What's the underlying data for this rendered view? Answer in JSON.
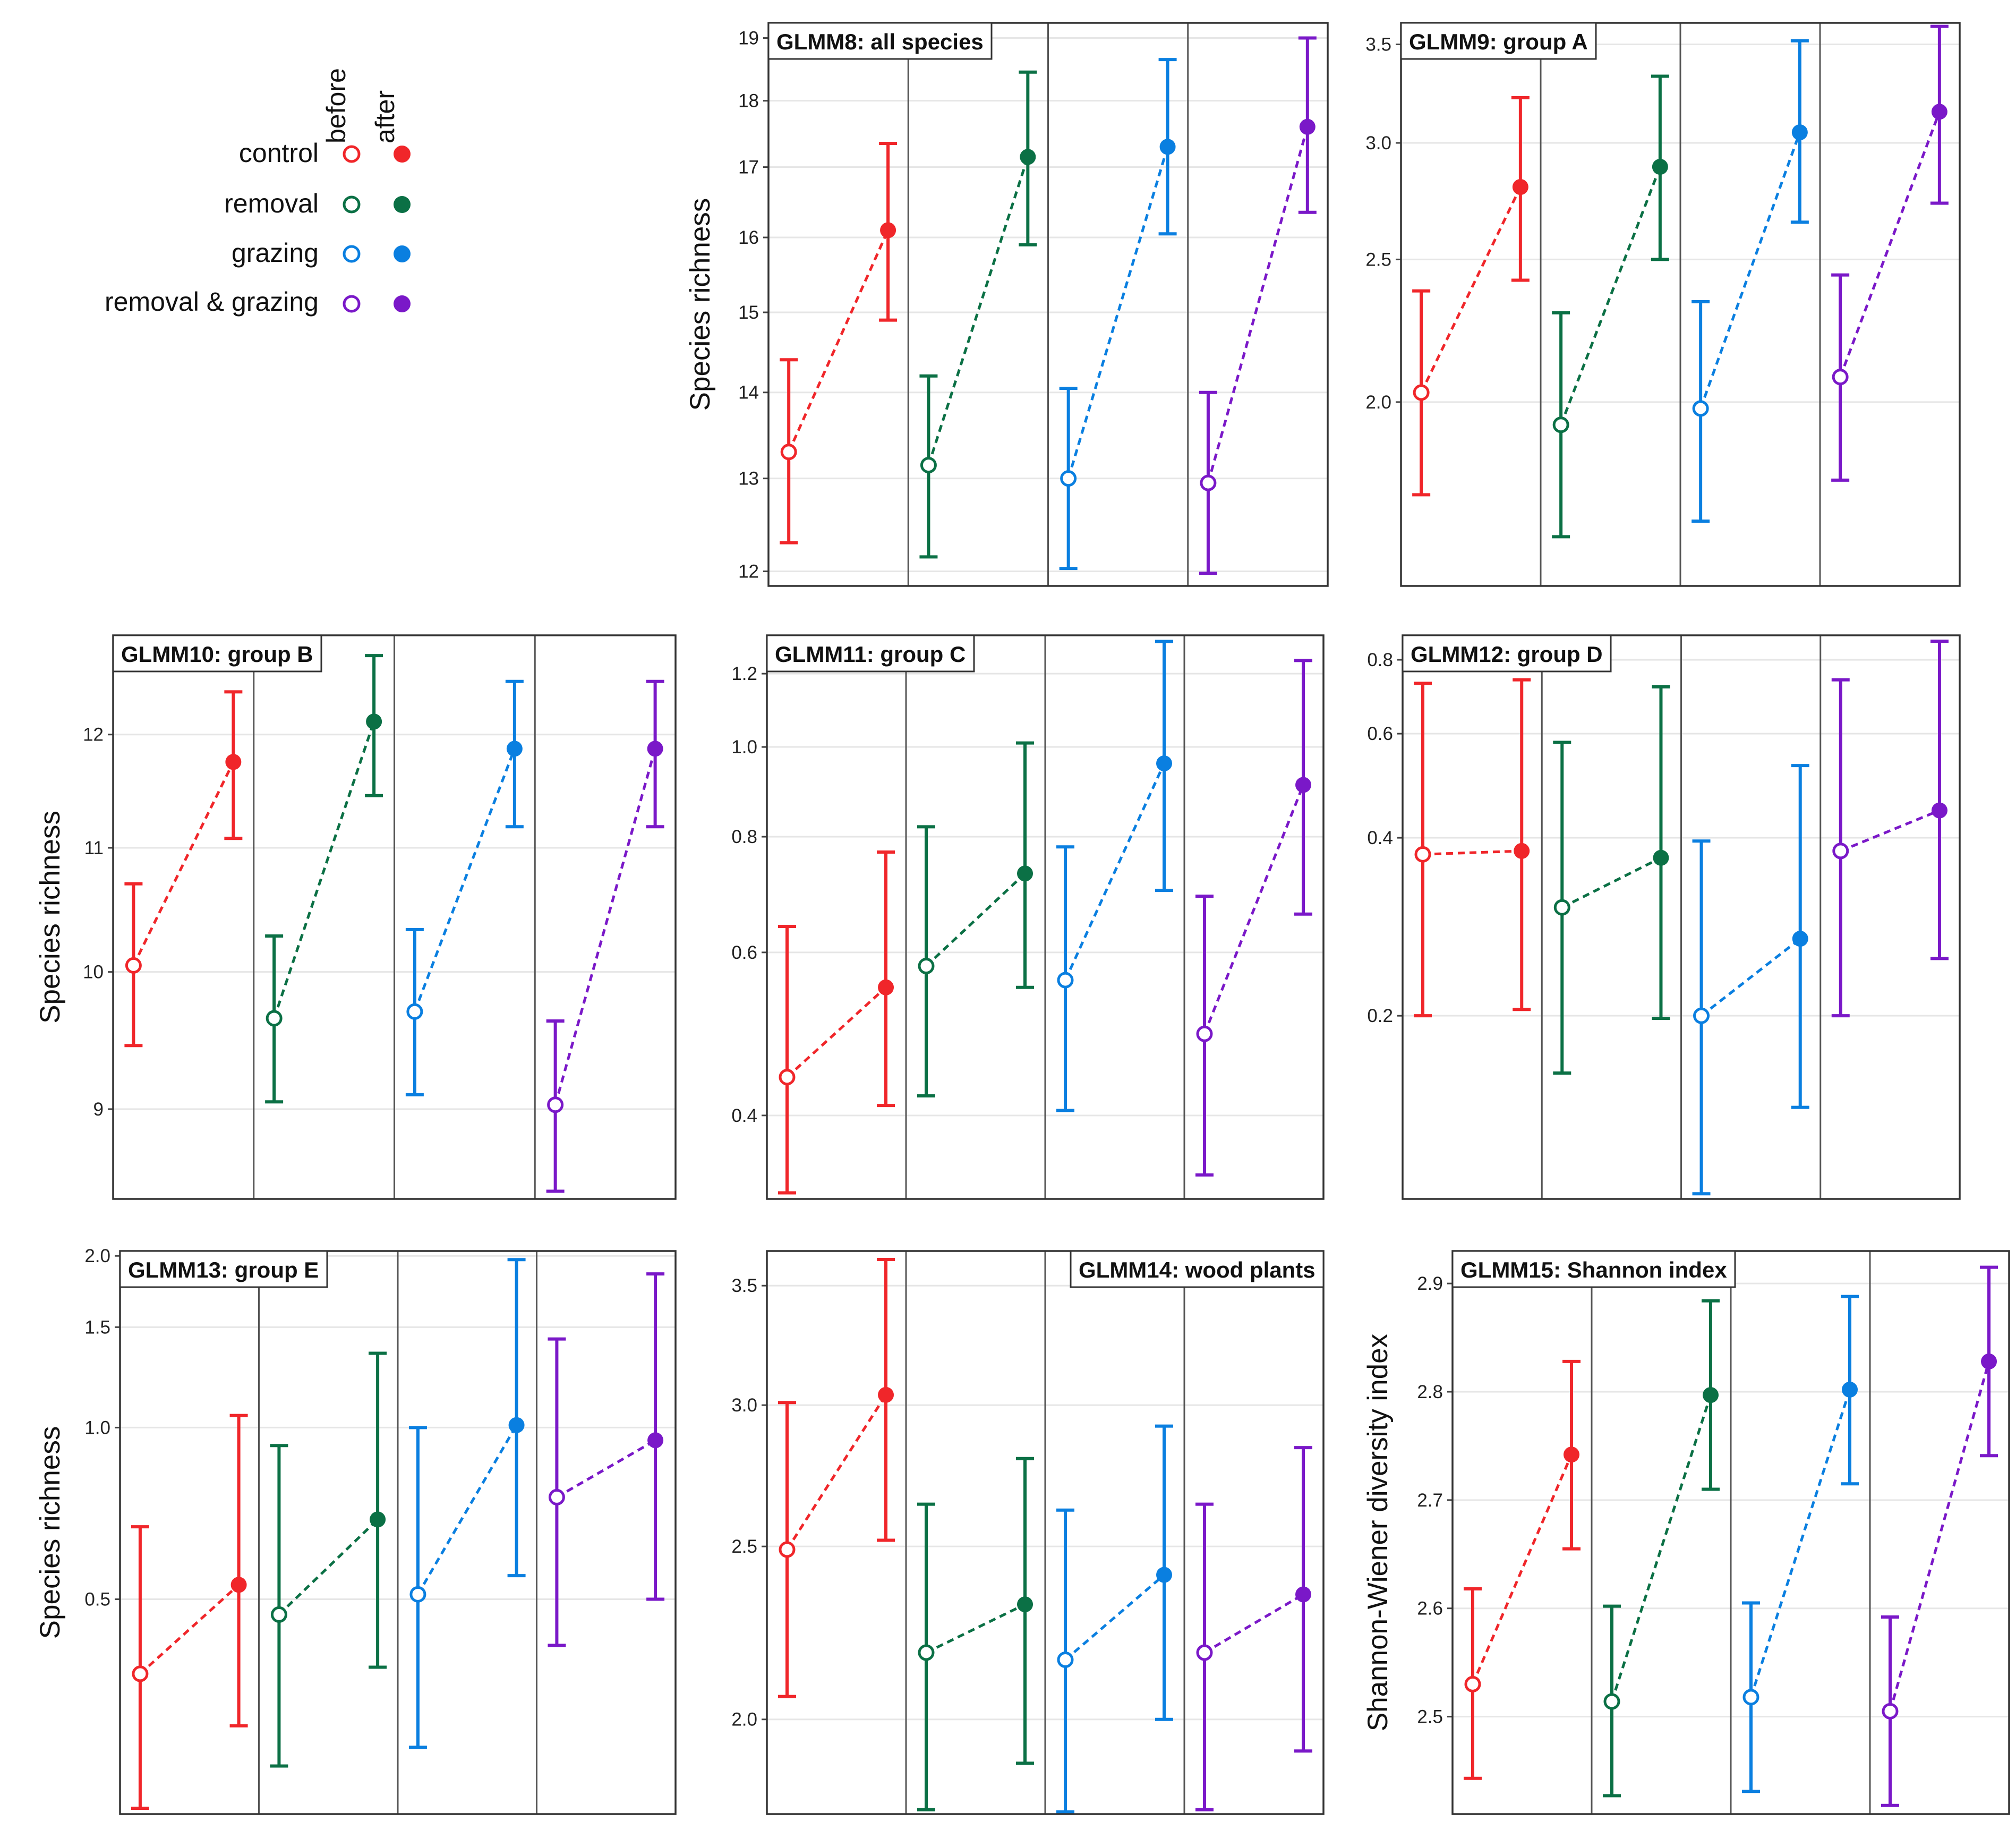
{
  "colors": {
    "control": "#f0262a",
    "removal": "#0b7045",
    "grazing": "#0a7fe0",
    "removal_grazing": "#7a18c8",
    "grid": "#e6e6e6",
    "frame": "#333333",
    "divider": "#555555"
  },
  "legend": {
    "column_labels": [
      "before",
      "after"
    ],
    "entries": [
      {
        "key": "control",
        "label": "control"
      },
      {
        "key": "removal",
        "label": "removal"
      },
      {
        "key": "grazing",
        "label": "grazing"
      },
      {
        "key": "removal_grazing",
        "label": "removal & grazing"
      }
    ]
  },
  "chart_data": [
    {
      "id": "glmm8",
      "type": "errorbar-line",
      "scale": "log",
      "title": "GLMM8: all species",
      "ylabel": "Species richness",
      "ylim": [
        11.85,
        19.25
      ],
      "ticks": [
        12,
        13,
        14,
        15,
        16,
        17,
        18,
        19
      ],
      "tick_labels": [
        "12",
        "13",
        "14",
        "15",
        "16",
        "17",
        "18",
        "19"
      ],
      "x": [
        "before",
        "after"
      ],
      "series": [
        {
          "name": "control",
          "before": {
            "mean": 13.3,
            "low": 12.3,
            "high": 14.4
          },
          "after": {
            "mean": 16.1,
            "low": 14.9,
            "high": 17.35
          }
        },
        {
          "name": "removal",
          "before": {
            "mean": 13.15,
            "low": 12.15,
            "high": 14.2
          },
          "after": {
            "mean": 17.15,
            "low": 15.9,
            "high": 18.45
          }
        },
        {
          "name": "grazing",
          "before": {
            "mean": 13.0,
            "low": 12.03,
            "high": 14.05
          },
          "after": {
            "mean": 17.3,
            "low": 16.05,
            "high": 18.65
          }
        },
        {
          "name": "removal & grazing",
          "before": {
            "mean": 12.95,
            "low": 11.98,
            "high": 14.0
          },
          "after": {
            "mean": 17.6,
            "low": 16.35,
            "high": 19.0
          }
        }
      ]
    },
    {
      "id": "glmm9",
      "type": "errorbar-line",
      "scale": "log",
      "title": "GLMM9: group A",
      "ylabel": "",
      "ylim": [
        1.5,
        3.62
      ],
      "ticks": [
        2.0,
        2.5,
        3.0,
        3.5
      ],
      "tick_labels": [
        "2.0",
        "2.5",
        "3.0",
        "3.5"
      ],
      "x": [
        "before",
        "after"
      ],
      "series": [
        {
          "name": "control",
          "before": {
            "mean": 2.03,
            "low": 1.73,
            "high": 2.38
          },
          "after": {
            "mean": 2.8,
            "low": 2.42,
            "high": 3.22
          }
        },
        {
          "name": "removal",
          "before": {
            "mean": 1.93,
            "low": 1.62,
            "high": 2.3
          },
          "after": {
            "mean": 2.89,
            "low": 2.5,
            "high": 3.33
          }
        },
        {
          "name": "grazing",
          "before": {
            "mean": 1.98,
            "low": 1.66,
            "high": 2.34
          },
          "after": {
            "mean": 3.05,
            "low": 2.65,
            "high": 3.52
          }
        },
        {
          "name": "removal & grazing",
          "before": {
            "mean": 2.08,
            "low": 1.77,
            "high": 2.44
          },
          "after": {
            "mean": 3.15,
            "low": 2.73,
            "high": 3.6
          }
        }
      ]
    },
    {
      "id": "glmm10",
      "type": "errorbar-line",
      "scale": "log",
      "title": "GLMM10: group B",
      "ylabel": "Species richness",
      "ylim": [
        8.4,
        12.95
      ],
      "ticks": [
        9,
        10,
        11,
        12
      ],
      "tick_labels": [
        "9",
        "10",
        "11",
        "12"
      ],
      "x": [
        "before",
        "after"
      ],
      "series": [
        {
          "name": "control",
          "before": {
            "mean": 10.05,
            "low": 9.45,
            "high": 10.7
          },
          "after": {
            "mean": 11.75,
            "low": 11.08,
            "high": 12.4
          }
        },
        {
          "name": "removal",
          "before": {
            "mean": 9.65,
            "low": 9.05,
            "high": 10.28
          },
          "after": {
            "mean": 12.12,
            "low": 11.45,
            "high": 12.75
          }
        },
        {
          "name": "grazing",
          "before": {
            "mean": 9.7,
            "low": 9.1,
            "high": 10.33
          },
          "after": {
            "mean": 11.87,
            "low": 11.18,
            "high": 12.5
          }
        },
        {
          "name": "removal & grazing",
          "before": {
            "mean": 9.03,
            "low": 8.45,
            "high": 9.63
          },
          "after": {
            "mean": 11.87,
            "low": 11.18,
            "high": 12.5
          }
        }
      ]
    },
    {
      "id": "glmm11",
      "type": "errorbar-line",
      "scale": "log",
      "title": "GLMM11: group C",
      "ylabel": "",
      "ylim": [
        0.325,
        1.32
      ],
      "ticks": [
        0.4,
        0.6,
        0.8,
        1.0,
        1.2
      ],
      "tick_labels": [
        "0.4",
        "0.6",
        "0.8",
        "1.0",
        "1.2"
      ],
      "x": [
        "before",
        "after"
      ],
      "series": [
        {
          "name": "control",
          "before": {
            "mean": 0.44,
            "low": 0.33,
            "high": 0.64
          },
          "after": {
            "mean": 0.55,
            "low": 0.41,
            "high": 0.77
          }
        },
        {
          "name": "removal",
          "before": {
            "mean": 0.58,
            "low": 0.42,
            "high": 0.82
          },
          "after": {
            "mean": 0.73,
            "low": 0.55,
            "high": 1.01
          }
        },
        {
          "name": "grazing",
          "before": {
            "mean": 0.56,
            "low": 0.405,
            "high": 0.78
          },
          "after": {
            "mean": 0.96,
            "low": 0.7,
            "high": 1.3
          }
        },
        {
          "name": "removal & grazing",
          "before": {
            "mean": 0.49,
            "low": 0.345,
            "high": 0.69
          },
          "after": {
            "mean": 0.91,
            "low": 0.66,
            "high": 1.24
          }
        }
      ]
    },
    {
      "id": "glmm12",
      "type": "errorbar-line",
      "scale": "log",
      "title": "GLMM12: group D",
      "ylabel": "",
      "ylim": [
        0.098,
        0.88
      ],
      "ticks": [
        0.2,
        0.4,
        0.6,
        0.8
      ],
      "tick_labels": [
        "0.2",
        "0.4",
        "0.6",
        "0.8"
      ],
      "x": [
        "before",
        "after"
      ],
      "series": [
        {
          "name": "control",
          "before": {
            "mean": 0.375,
            "low": 0.2,
            "high": 0.73
          },
          "after": {
            "mean": 0.38,
            "low": 0.205,
            "high": 0.74
          }
        },
        {
          "name": "removal",
          "before": {
            "mean": 0.305,
            "low": 0.16,
            "high": 0.58
          },
          "after": {
            "mean": 0.37,
            "low": 0.198,
            "high": 0.72
          }
        },
        {
          "name": "grazing",
          "before": {
            "mean": 0.2,
            "low": 0.1,
            "high": 0.395
          },
          "after": {
            "mean": 0.27,
            "low": 0.14,
            "high": 0.53
          }
        },
        {
          "name": "removal & grazing",
          "before": {
            "mean": 0.38,
            "low": 0.2,
            "high": 0.74
          },
          "after": {
            "mean": 0.445,
            "low": 0.25,
            "high": 0.86
          }
        }
      ]
    },
    {
      "id": "glmm13",
      "type": "errorbar-line",
      "scale": "log",
      "title": "GLMM13: group E",
      "ylabel": "Species richness",
      "ylim": [
        0.21,
        2.04
      ],
      "ticks": [
        0.5,
        1.0,
        1.5,
        2.0
      ],
      "tick_labels": [
        "0.5",
        "1.0",
        "1.5",
        "2.0"
      ],
      "x": [
        "before",
        "after"
      ],
      "series": [
        {
          "name": "control",
          "before": {
            "mean": 0.37,
            "low": 0.215,
            "high": 0.67
          },
          "after": {
            "mean": 0.53,
            "low": 0.3,
            "high": 1.05
          }
        },
        {
          "name": "removal",
          "before": {
            "mean": 0.47,
            "low": 0.255,
            "high": 0.93
          },
          "after": {
            "mean": 0.69,
            "low": 0.38,
            "high": 1.35
          }
        },
        {
          "name": "grazing",
          "before": {
            "mean": 0.51,
            "low": 0.275,
            "high": 1.0
          },
          "after": {
            "mean": 1.01,
            "low": 0.55,
            "high": 1.97
          }
        },
        {
          "name": "removal & grazing",
          "before": {
            "mean": 0.755,
            "low": 0.415,
            "high": 1.43
          },
          "after": {
            "mean": 0.95,
            "low": 0.5,
            "high": 1.86
          }
        }
      ]
    },
    {
      "id": "glmm14",
      "type": "errorbar-line",
      "scale": "log",
      "title": "GLMM14: wood plants",
      "ylabel": "",
      "ylim": [
        1.77,
        3.66
      ],
      "ticks": [
        2.0,
        2.5,
        3.0,
        3.5
      ],
      "tick_labels": [
        "2.0",
        "2.5",
        "3.0",
        "3.5"
      ],
      "x": [
        "before",
        "after"
      ],
      "series": [
        {
          "name": "control",
          "before": {
            "mean": 2.49,
            "low": 2.06,
            "high": 3.01
          },
          "after": {
            "mean": 3.04,
            "low": 2.52,
            "high": 3.62
          }
        },
        {
          "name": "removal",
          "before": {
            "mean": 2.18,
            "low": 1.78,
            "high": 2.64
          },
          "after": {
            "mean": 2.32,
            "low": 1.89,
            "high": 2.8
          }
        },
        {
          "name": "grazing",
          "before": {
            "mean": 2.16,
            "low": 1.775,
            "high": 2.62
          },
          "after": {
            "mean": 2.41,
            "low": 2.0,
            "high": 2.92
          }
        },
        {
          "name": "removal & grazing",
          "before": {
            "mean": 2.18,
            "low": 1.78,
            "high": 2.64
          },
          "after": {
            "mean": 2.35,
            "low": 1.92,
            "high": 2.84
          }
        }
      ]
    },
    {
      "id": "glmm15",
      "type": "errorbar-line",
      "scale": "linear",
      "title": "GLMM15: Shannon index",
      "ylabel": "Shannon-Wiener diversity index",
      "ylim": [
        2.41,
        2.93
      ],
      "ticks": [
        2.5,
        2.6,
        2.7,
        2.8,
        2.9
      ],
      "tick_labels": [
        "2.5",
        "2.6",
        "2.7",
        "2.8",
        "2.9"
      ],
      "x": [
        "before",
        "after"
      ],
      "series": [
        {
          "name": "control",
          "before": {
            "mean": 2.53,
            "low": 2.443,
            "high": 2.618
          },
          "after": {
            "mean": 2.742,
            "low": 2.655,
            "high": 2.828
          }
        },
        {
          "name": "removal",
          "before": {
            "mean": 2.514,
            "low": 2.427,
            "high": 2.602
          },
          "after": {
            "mean": 2.797,
            "low": 2.71,
            "high": 2.884
          }
        },
        {
          "name": "grazing",
          "before": {
            "mean": 2.518,
            "low": 2.431,
            "high": 2.605
          },
          "after": {
            "mean": 2.802,
            "low": 2.715,
            "high": 2.888
          }
        },
        {
          "name": "removal & grazing",
          "before": {
            "mean": 2.505,
            "low": 2.418,
            "high": 2.592
          },
          "after": {
            "mean": 2.828,
            "low": 2.741,
            "high": 2.915
          }
        }
      ]
    }
  ]
}
